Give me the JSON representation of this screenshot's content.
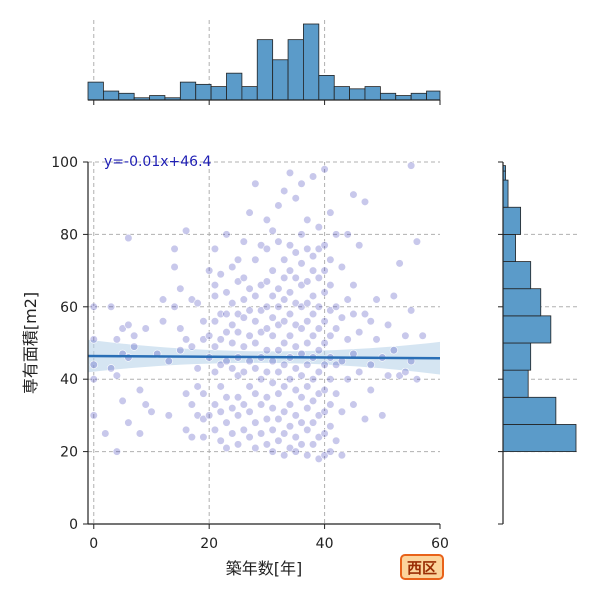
{
  "chart_data": {
    "type": "scatter",
    "xlabel": "築年数[年]",
    "ylabel": "専有面積[m2]",
    "xlim": [
      -1,
      60
    ],
    "ylim": [
      0,
      100
    ],
    "x_ticks": [
      "0",
      "20",
      "40",
      "60"
    ],
    "y_ticks": [
      "0",
      "20",
      "40",
      "60",
      "80",
      "100"
    ],
    "grid": true,
    "regression": {
      "label": "y=-0.01x+46.4",
      "slope": -0.01,
      "intercept": 46.4,
      "ci_half_width_edge": 4.5,
      "ci_half_width_center": 1.6
    },
    "colors": {
      "points": "#3b3bb8",
      "regression_line": "#2a6fb6",
      "ci_band": "#b9d3ea",
      "hist_fill": "#5b9bc9",
      "equation_text": "#1f1fb4"
    },
    "points": [
      [
        0,
        60
      ],
      [
        0,
        51
      ],
      [
        0,
        44
      ],
      [
        0,
        30
      ],
      [
        0,
        40
      ],
      [
        2,
        25
      ],
      [
        3,
        60
      ],
      [
        3,
        43
      ],
      [
        4,
        20
      ],
      [
        4,
        41
      ],
      [
        4,
        51
      ],
      [
        5,
        54
      ],
      [
        5,
        47
      ],
      [
        5,
        34
      ],
      [
        6,
        79
      ],
      [
        6,
        46
      ],
      [
        6,
        28
      ],
      [
        6,
        55
      ],
      [
        7,
        49
      ],
      [
        7,
        52
      ],
      [
        8,
        25
      ],
      [
        8,
        37
      ],
      [
        9,
        33
      ],
      [
        9,
        54
      ],
      [
        10,
        31
      ],
      [
        11,
        47
      ],
      [
        12,
        62
      ],
      [
        12,
        56
      ],
      [
        13,
        30
      ],
      [
        13,
        45
      ],
      [
        14,
        76
      ],
      [
        14,
        60
      ],
      [
        14,
        71
      ],
      [
        15,
        54
      ],
      [
        15,
        65
      ],
      [
        15,
        48
      ],
      [
        16,
        81
      ],
      [
        16,
        51
      ],
      [
        16,
        36
      ],
      [
        16,
        26
      ],
      [
        17,
        62
      ],
      [
        17,
        49
      ],
      [
        17,
        33
      ],
      [
        17,
        24
      ],
      [
        18,
        61
      ],
      [
        18,
        43
      ],
      [
        18,
        38
      ],
      [
        18,
        30
      ],
      [
        19,
        56
      ],
      [
        19,
        51
      ],
      [
        19,
        36
      ],
      [
        19,
        29
      ],
      [
        19,
        24
      ],
      [
        20,
        70
      ],
      [
        20,
        52
      ],
      [
        20,
        46
      ],
      [
        20,
        30
      ],
      [
        21,
        76
      ],
      [
        21,
        66
      ],
      [
        21,
        63
      ],
      [
        21,
        56
      ],
      [
        21,
        49
      ],
      [
        21,
        42
      ],
      [
        21,
        33
      ],
      [
        21,
        26
      ],
      [
        22,
        69
      ],
      [
        22,
        58
      ],
      [
        22,
        51
      ],
      [
        22,
        44
      ],
      [
        22,
        38
      ],
      [
        22,
        31
      ],
      [
        22,
        23
      ],
      [
        23,
        80
      ],
      [
        23,
        64
      ],
      [
        23,
        58
      ],
      [
        23,
        53
      ],
      [
        23,
        45
      ],
      [
        23,
        35
      ],
      [
        23,
        28
      ],
      [
        23,
        21
      ],
      [
        24,
        71
      ],
      [
        24,
        61
      ],
      [
        24,
        55
      ],
      [
        24,
        50
      ],
      [
        24,
        43
      ],
      [
        24,
        32
      ],
      [
        24,
        25
      ],
      [
        25,
        73
      ],
      [
        25,
        67
      ],
      [
        25,
        58
      ],
      [
        25,
        53
      ],
      [
        25,
        46
      ],
      [
        25,
        41
      ],
      [
        25,
        35
      ],
      [
        25,
        30
      ],
      [
        25,
        22
      ],
      [
        26,
        78
      ],
      [
        26,
        68
      ],
      [
        26,
        62
      ],
      [
        26,
        57
      ],
      [
        26,
        49
      ],
      [
        26,
        42
      ],
      [
        26,
        33
      ],
      [
        26,
        26
      ],
      [
        27,
        86
      ],
      [
        27,
        65
      ],
      [
        27,
        59
      ],
      [
        27,
        52
      ],
      [
        27,
        45
      ],
      [
        27,
        38
      ],
      [
        27,
        31
      ],
      [
        27,
        24
      ],
      [
        28,
        94
      ],
      [
        28,
        73
      ],
      [
        28,
        63
      ],
      [
        28,
        56
      ],
      [
        28,
        50
      ],
      [
        28,
        43
      ],
      [
        28,
        36
      ],
      [
        28,
        28
      ],
      [
        28,
        21
      ],
      [
        29,
        77
      ],
      [
        29,
        66
      ],
      [
        29,
        59
      ],
      [
        29,
        53
      ],
      [
        29,
        46
      ],
      [
        29,
        40
      ],
      [
        29,
        33
      ],
      [
        29,
        25
      ],
      [
        30,
        84
      ],
      [
        30,
        76
      ],
      [
        30,
        67
      ],
      [
        30,
        60
      ],
      [
        30,
        54
      ],
      [
        30,
        48
      ],
      [
        30,
        42
      ],
      [
        30,
        35
      ],
      [
        30,
        29
      ],
      [
        30,
        22
      ],
      [
        31,
        81
      ],
      [
        31,
        70
      ],
      [
        31,
        63
      ],
      [
        31,
        57
      ],
      [
        31,
        52
      ],
      [
        31,
        45
      ],
      [
        31,
        39
      ],
      [
        31,
        32
      ],
      [
        31,
        26
      ],
      [
        31,
        20
      ],
      [
        32,
        88
      ],
      [
        32,
        78
      ],
      [
        32,
        65
      ],
      [
        32,
        60
      ],
      [
        32,
        55
      ],
      [
        32,
        48
      ],
      [
        32,
        42
      ],
      [
        32,
        36
      ],
      [
        32,
        29
      ],
      [
        32,
        23
      ],
      [
        33,
        92
      ],
      [
        33,
        73
      ],
      [
        33,
        68
      ],
      [
        33,
        62
      ],
      [
        33,
        56
      ],
      [
        33,
        50
      ],
      [
        33,
        44
      ],
      [
        33,
        38
      ],
      [
        33,
        31
      ],
      [
        33,
        25
      ],
      [
        33,
        19
      ],
      [
        34,
        97
      ],
      [
        34,
        77
      ],
      [
        34,
        70
      ],
      [
        34,
        64
      ],
      [
        34,
        58
      ],
      [
        34,
        52
      ],
      [
        34,
        46
      ],
      [
        34,
        40
      ],
      [
        34,
        33
      ],
      [
        34,
        27
      ],
      [
        34,
        21
      ],
      [
        35,
        90
      ],
      [
        35,
        75
      ],
      [
        35,
        68
      ],
      [
        35,
        61
      ],
      [
        35,
        55
      ],
      [
        35,
        49
      ],
      [
        35,
        43
      ],
      [
        35,
        37
      ],
      [
        35,
        30
      ],
      [
        35,
        24
      ],
      [
        35,
        20
      ],
      [
        36,
        94
      ],
      [
        36,
        80
      ],
      [
        36,
        72
      ],
      [
        36,
        66
      ],
      [
        36,
        60
      ],
      [
        36,
        54
      ],
      [
        36,
        47
      ],
      [
        36,
        41
      ],
      [
        36,
        35
      ],
      [
        36,
        28
      ],
      [
        36,
        22
      ],
      [
        37,
        84
      ],
      [
        37,
        76
      ],
      [
        37,
        67
      ],
      [
        37,
        61
      ],
      [
        37,
        56
      ],
      [
        37,
        50
      ],
      [
        37,
        44
      ],
      [
        37,
        38
      ],
      [
        37,
        32
      ],
      [
        37,
        26
      ],
      [
        37,
        19
      ],
      [
        38,
        96
      ],
      [
        38,
        74
      ],
      [
        38,
        70
      ],
      [
        38,
        63
      ],
      [
        38,
        58
      ],
      [
        38,
        52
      ],
      [
        38,
        46
      ],
      [
        38,
        40
      ],
      [
        38,
        34
      ],
      [
        38,
        28
      ],
      [
        38,
        22
      ],
      [
        39,
        82
      ],
      [
        39,
        76
      ],
      [
        39,
        68
      ],
      [
        39,
        60
      ],
      [
        39,
        54
      ],
      [
        39,
        48
      ],
      [
        39,
        42
      ],
      [
        39,
        36
      ],
      [
        39,
        30
      ],
      [
        39,
        24
      ],
      [
        39,
        18
      ],
      [
        40,
        98
      ],
      [
        40,
        77
      ],
      [
        40,
        70
      ],
      [
        40,
        64
      ],
      [
        40,
        56
      ],
      [
        40,
        50
      ],
      [
        40,
        44
      ],
      [
        40,
        37
      ],
      [
        40,
        31
      ],
      [
        40,
        25
      ],
      [
        40,
        19
      ],
      [
        41,
        86
      ],
      [
        41,
        73
      ],
      [
        41,
        66
      ],
      [
        41,
        59
      ],
      [
        41,
        52
      ],
      [
        41,
        46
      ],
      [
        41,
        40
      ],
      [
        41,
        33
      ],
      [
        41,
        27
      ],
      [
        41,
        20
      ],
      [
        42,
        80
      ],
      [
        42,
        60
      ],
      [
        42,
        54
      ],
      [
        42,
        44
      ],
      [
        42,
        36
      ],
      [
        42,
        23
      ],
      [
        43,
        71
      ],
      [
        43,
        57
      ],
      [
        43,
        45
      ],
      [
        43,
        31
      ],
      [
        43,
        19
      ],
      [
        44,
        80
      ],
      [
        44,
        62
      ],
      [
        44,
        51
      ],
      [
        44,
        40
      ],
      [
        45,
        91
      ],
      [
        45,
        66
      ],
      [
        45,
        58
      ],
      [
        45,
        47
      ],
      [
        45,
        33
      ],
      [
        46,
        77
      ],
      [
        46,
        53
      ],
      [
        46,
        42
      ],
      [
        47,
        89
      ],
      [
        47,
        58
      ],
      [
        47,
        29
      ],
      [
        48,
        56
      ],
      [
        48,
        44
      ],
      [
        48,
        37
      ],
      [
        49,
        62
      ],
      [
        49,
        51
      ],
      [
        50,
        46
      ],
      [
        50,
        30
      ],
      [
        51,
        55
      ],
      [
        51,
        41
      ],
      [
        52,
        63
      ],
      [
        52,
        48
      ],
      [
        53,
        72
      ],
      [
        53,
        41
      ],
      [
        54,
        52
      ],
      [
        54,
        42
      ],
      [
        55,
        99
      ],
      [
        55,
        59
      ],
      [
        55,
        45
      ],
      [
        56,
        78
      ],
      [
        56,
        40
      ],
      [
        57,
        52
      ]
    ],
    "top_histogram": {
      "bins": [
        -1,
        1.67,
        4.33,
        7,
        9.67,
        12.33,
        15,
        17.67,
        20.33,
        23,
        25.67,
        28.33,
        31,
        33.67,
        36.33,
        39,
        41.67,
        44.33,
        47,
        49.67,
        52.33,
        55,
        57.67,
        60.33
      ],
      "counts": [
        8,
        4,
        3,
        1,
        2,
        1,
        8,
        7,
        6,
        12,
        6,
        27,
        18,
        27,
        34,
        11,
        6,
        5,
        6,
        3,
        2,
        3,
        4
      ]
    },
    "right_histogram": {
      "bins": [
        20,
        27.5,
        35,
        42.5,
        50,
        57.5,
        65,
        72.5,
        80,
        87.5,
        95,
        97.5,
        99
      ],
      "counts": [
        29,
        21,
        10,
        11,
        19,
        15,
        11,
        5,
        7,
        2,
        1,
        1
      ]
    }
  }
}
